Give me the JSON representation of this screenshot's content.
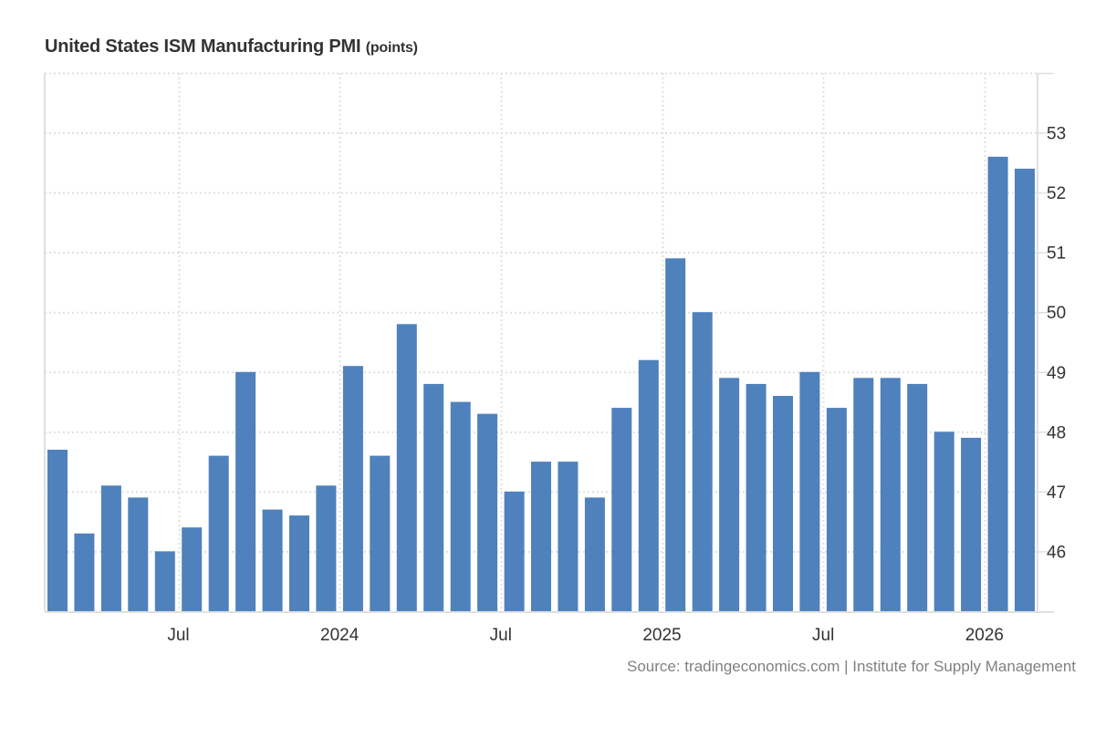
{
  "header": {
    "title": "United States ISM Manufacturing PMI",
    "unit": "(points)"
  },
  "footer": {
    "source": "Source: tradingeconomics.com | Institute for Supply Management"
  },
  "colors": {
    "bar": "#4f81bd",
    "grid": "#e0e0e0",
    "axis": "#e0e0e0",
    "text": "#333333",
    "source_text": "#808080"
  },
  "chart_data": {
    "type": "bar",
    "title": "United States ISM Manufacturing PMI",
    "subtitle": "(points)",
    "xlabel": "",
    "ylabel": "points",
    "ylim": [
      45,
      54
    ],
    "yticks": [
      46,
      47,
      48,
      49,
      50,
      51,
      52,
      53
    ],
    "y_axis_position": "right",
    "grid": true,
    "legend": "none",
    "categories": [
      "2023-02",
      "2023-03",
      "2023-04",
      "2023-05",
      "2023-06",
      "2023-07",
      "2023-08",
      "2023-09",
      "2023-10",
      "2023-11",
      "2023-12",
      "2024-01",
      "2024-02",
      "2024-03",
      "2024-04",
      "2024-05",
      "2024-06",
      "2024-07",
      "2024-08",
      "2024-09",
      "2024-10",
      "2024-11",
      "2024-12",
      "2025-01",
      "2025-02",
      "2025-03",
      "2025-04",
      "2025-05",
      "2025-06",
      "2025-07",
      "2025-08",
      "2025-09",
      "2025-10",
      "2025-11",
      "2025-12",
      "2026-01",
      "2026-02"
    ],
    "values": [
      47.7,
      46.3,
      47.1,
      46.9,
      46.0,
      46.4,
      47.6,
      49.0,
      46.7,
      46.6,
      47.1,
      49.1,
      47.6,
      49.8,
      48.8,
      48.5,
      48.3,
      47.0,
      47.5,
      47.5,
      46.9,
      48.4,
      49.2,
      50.9,
      50.0,
      48.9,
      48.8,
      48.6,
      49.0,
      48.4,
      48.9,
      48.9,
      48.8,
      48.0,
      47.9,
      52.6,
      52.4
    ],
    "xticks": [
      {
        "label": "Jul",
        "category": "2023-07"
      },
      {
        "label": "2024",
        "category": "2024-01"
      },
      {
        "label": "Jul",
        "category": "2024-07"
      },
      {
        "label": "2025",
        "category": "2025-01"
      },
      {
        "label": "Jul",
        "category": "2025-07"
      },
      {
        "label": "2026",
        "category": "2026-01"
      }
    ]
  }
}
